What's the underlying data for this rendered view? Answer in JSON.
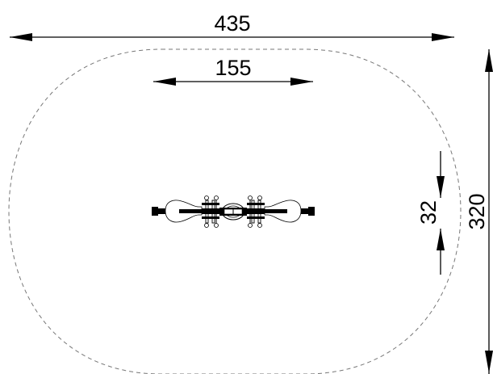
{
  "diagram": {
    "dimensions": {
      "overall_width": "435",
      "equipment_length": "155",
      "equipment_width": "32",
      "overall_height": "320"
    },
    "colors": {
      "line": "#000000",
      "safety_zone": "#777777",
      "background": "#ffffff"
    }
  }
}
